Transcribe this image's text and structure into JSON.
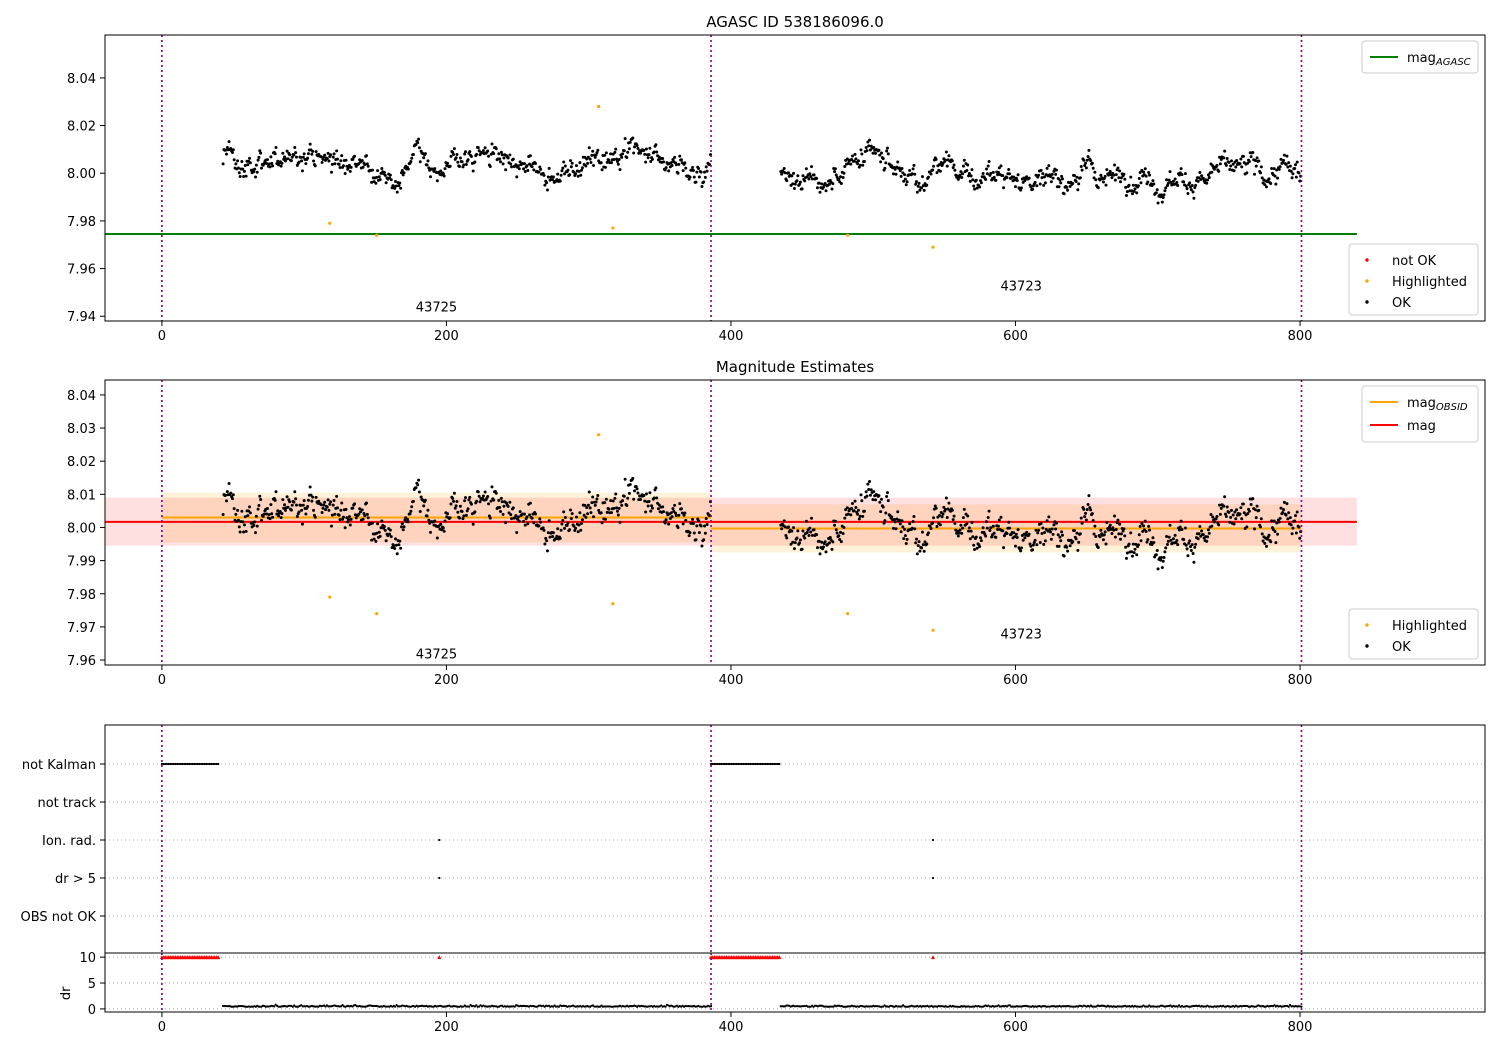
{
  "figure": {
    "panel1_title": "AGASC ID 538186096.0",
    "panel2_title": "Magnitude Estimates"
  },
  "chart_data": [
    {
      "type": "scatter",
      "title": "AGASC ID 538186096.0",
      "xlabel": "",
      "ylabel": "",
      "xlim": [
        -40,
        930
      ],
      "ylim": [
        7.938,
        8.058
      ],
      "xticks": [
        0,
        200,
        400,
        600,
        800
      ],
      "yticks": [
        7.94,
        7.96,
        7.98,
        8.0,
        8.02,
        8.04
      ],
      "ytick_labels": [
        "7.94",
        "7.96",
        "7.98",
        "8.00",
        "8.02",
        "8.04"
      ],
      "grid": false,
      "obsid_boundaries": [
        0,
        386,
        801
      ],
      "obsid_labels": [
        {
          "text": "43725",
          "x": 193,
          "y": 7.944
        },
        {
          "text": "43723",
          "x": 604,
          "y": 7.953
        }
      ],
      "lines": [
        {
          "name": "mag",
          "name_sub": "AGASC",
          "y": 7.9745,
          "x_range": [
            -40,
            840
          ],
          "color": "#008000"
        }
      ],
      "segments": [
        {
          "x_start": 43,
          "x_end": 386,
          "mean": 8.004,
          "noise": 0.006
        },
        {
          "x_start": 435,
          "x_end": 801,
          "mean": 7.999,
          "noise": 0.006
        }
      ],
      "series": [
        {
          "name": "not OK",
          "color": "#ff0000",
          "points": []
        },
        {
          "name": "Highlighted",
          "color": "#ffa500",
          "points": [
            [
              118,
              7.979
            ],
            [
              151,
              7.974
            ],
            [
              307,
              8.028
            ],
            [
              317,
              7.977
            ],
            [
              482,
              7.974
            ],
            [
              542,
              7.969
            ]
          ]
        },
        {
          "name": "OK",
          "color": "#000000"
        }
      ],
      "legend_top": "top-right",
      "legend_bottom": "bottom-right"
    },
    {
      "type": "scatter",
      "title": "Magnitude Estimates",
      "xlabel": "",
      "ylabel": "",
      "xlim": [
        -40,
        930
      ],
      "ylim": [
        7.9585,
        8.0445
      ],
      "xticks": [
        0,
        200,
        400,
        600,
        800
      ],
      "yticks": [
        7.96,
        7.97,
        7.98,
        7.99,
        8.0,
        8.01,
        8.02,
        8.03,
        8.04
      ],
      "ytick_labels": [
        "7.96",
        "7.97",
        "7.98",
        "7.99",
        "8.00",
        "8.01",
        "8.02",
        "8.03",
        "8.04"
      ],
      "grid": false,
      "obsid_boundaries": [
        0,
        386,
        801
      ],
      "obsid_labels": [
        {
          "text": "43725",
          "x": 193,
          "y": 7.962
        },
        {
          "text": "43723",
          "x": 604,
          "y": 7.968
        }
      ],
      "bands": [
        {
          "x_range": [
            0,
            386
          ],
          "y_range": [
            7.9955,
            8.0105
          ],
          "color": "#ffa500",
          "opacity": 0.15
        },
        {
          "x_range": [
            386,
            801
          ],
          "y_range": [
            7.9925,
            8.007
          ],
          "color": "#ffa500",
          "opacity": 0.15
        },
        {
          "x_range": [
            -40,
            840
          ],
          "y_range": [
            7.9945,
            8.009
          ],
          "color": "#ff0000",
          "opacity": 0.12
        }
      ],
      "lines": [
        {
          "name": "mag",
          "name_sub": "OBSID",
          "color": "#ffa500",
          "steps": [
            {
              "x_range": [
                0,
                386
              ],
              "y": 8.003
            },
            {
              "x_range": [
                386,
                801
              ],
              "y": 7.9997
            }
          ]
        },
        {
          "name": "mag",
          "name_sub": "",
          "color": "#ff0000",
          "steps": [
            {
              "x_range": [
                -40,
                840
              ],
              "y": 8.0017
            }
          ]
        }
      ],
      "series": [
        {
          "name": "Highlighted",
          "color": "#ffa500",
          "points": [
            [
              118,
              7.979
            ],
            [
              151,
              7.974
            ],
            [
              307,
              8.028
            ],
            [
              317,
              7.977
            ],
            [
              482,
              7.974
            ],
            [
              542,
              7.969
            ]
          ]
        },
        {
          "name": "OK",
          "color": "#000000"
        }
      ],
      "legend_top": "top-right",
      "legend_bottom": "bottom-right"
    },
    {
      "type": "scatter",
      "title": "",
      "xlabel": "",
      "ylabel": "",
      "xlim": [
        -40,
        930
      ],
      "categories": [
        "not Kalman",
        "not track",
        "Ion. rad.",
        "dr > 5",
        "OBS not OK"
      ],
      "grid": true,
      "flag_points": [
        {
          "category": "not Kalman",
          "x_ranges": [
            [
              0,
              40
            ],
            [
              386,
              435
            ]
          ]
        },
        {
          "category": "Ion. rad.",
          "x": [
            195,
            542
          ]
        },
        {
          "category": "dr > 5",
          "x": [
            195,
            542
          ]
        }
      ]
    },
    {
      "type": "scatter",
      "title": "",
      "xlabel": "",
      "ylabel": "dr",
      "xlim": [
        -40,
        930
      ],
      "ylim": [
        -0.6,
        10.8
      ],
      "xticks": [
        0,
        200,
        400,
        600,
        800
      ],
      "yticks": [
        0,
        5,
        10
      ],
      "grid": true,
      "capped_value": 10,
      "capped_points_x_ranges": [
        [
          0,
          40
        ],
        [
          386,
          435
        ]
      ],
      "capped_points_x": [
        195,
        542
      ],
      "dr_segments": [
        [
          43,
          386
        ],
        [
          435,
          801
        ]
      ],
      "dr_typical": 0.4
    }
  ]
}
